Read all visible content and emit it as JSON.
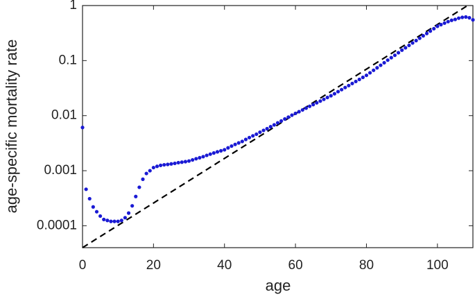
{
  "chart_data": {
    "type": "scatter",
    "x_label": "age",
    "y_label": "age-specific mortality rate",
    "x": [
      0,
      1,
      2,
      3,
      4,
      5,
      6,
      7,
      8,
      9,
      10,
      11,
      12,
      13,
      14,
      15,
      16,
      17,
      18,
      19,
      20,
      21,
      22,
      23,
      24,
      25,
      26,
      27,
      28,
      29,
      30,
      31,
      32,
      33,
      34,
      35,
      36,
      37,
      38,
      39,
      40,
      41,
      42,
      43,
      44,
      45,
      46,
      47,
      48,
      49,
      50,
      51,
      52,
      53,
      54,
      55,
      56,
      57,
      58,
      59,
      60,
      61,
      62,
      63,
      64,
      65,
      66,
      67,
      68,
      69,
      70,
      71,
      72,
      73,
      74,
      75,
      76,
      77,
      78,
      79,
      80,
      81,
      82,
      83,
      84,
      85,
      86,
      87,
      88,
      89,
      90,
      91,
      92,
      93,
      94,
      95,
      96,
      97,
      98,
      99,
      100,
      101,
      102,
      103,
      104,
      105,
      106,
      107,
      108,
      109,
      110
    ],
    "series": [
      {
        "color": "#1a1ad4",
        "values": [
          0.0061,
          0.00046,
          0.00031,
          0.00022,
          0.00018,
          0.00015,
          0.00013,
          0.000125,
          0.00012,
          0.00012,
          0.00012,
          0.000125,
          0.00014,
          0.00017,
          0.00023,
          0.00034,
          0.0005,
          0.0007,
          0.00089,
          0.001,
          0.00114,
          0.0012,
          0.00125,
          0.00128,
          0.0013,
          0.00133,
          0.00136,
          0.0014,
          0.00143,
          0.00146,
          0.0015,
          0.00157,
          0.00165,
          0.00172,
          0.0018,
          0.0019,
          0.002,
          0.0021,
          0.0022,
          0.0023,
          0.0024,
          0.0026,
          0.0028,
          0.003,
          0.0032,
          0.0034,
          0.0037,
          0.004,
          0.0043,
          0.0046,
          0.005,
          0.0054,
          0.0058,
          0.0063,
          0.0068,
          0.0074,
          0.008,
          0.0087,
          0.0094,
          0.0102,
          0.011,
          0.0118,
          0.0127,
          0.0137,
          0.0148,
          0.0159,
          0.0171,
          0.0184,
          0.0198,
          0.0214,
          0.023,
          0.025,
          0.0273,
          0.0297,
          0.0324,
          0.0352,
          0.0384,
          0.0418,
          0.0455,
          0.0496,
          0.054,
          0.06,
          0.0667,
          0.074,
          0.0823,
          0.0914,
          0.102,
          0.113,
          0.125,
          0.139,
          0.155,
          0.171,
          0.189,
          0.209,
          0.231,
          0.255,
          0.282,
          0.311,
          0.344,
          0.38,
          0.42,
          0.45,
          0.48,
          0.51,
          0.54,
          0.56,
          0.59,
          0.61,
          0.62,
          0.6,
          0.55
        ]
      }
    ],
    "reference_line": {
      "x": [
        0,
        108.5
      ],
      "values": [
        4e-05,
        1
      ],
      "color": "#000000",
      "dashed": true
    },
    "xlim": [
      0,
      110
    ],
    "xticks": [
      0,
      20,
      40,
      60,
      80,
      100
    ],
    "ylim": [
      4e-05,
      1
    ],
    "yticks": [
      0.0001,
      0.001,
      0.01,
      0.1,
      1
    ],
    "log_y": true,
    "grid": false
  }
}
